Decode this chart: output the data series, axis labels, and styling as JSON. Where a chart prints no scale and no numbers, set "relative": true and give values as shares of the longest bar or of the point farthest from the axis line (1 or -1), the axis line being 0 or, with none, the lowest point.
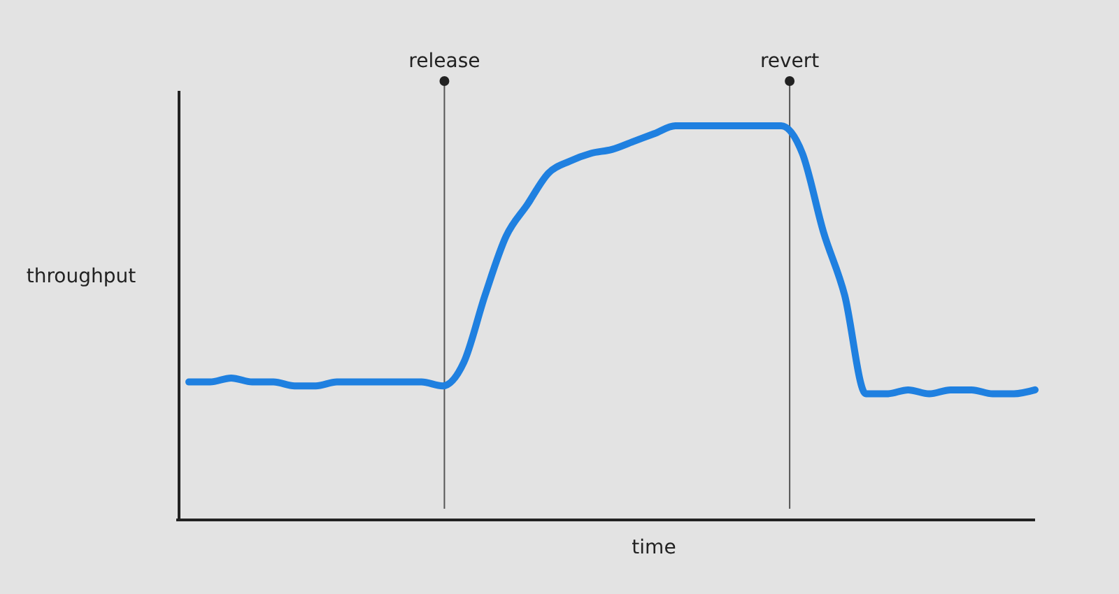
{
  "chart_data": {
    "type": "line",
    "xlabel": "time",
    "ylabel": "throughput",
    "relative": true,
    "categories": [
      null,
      null,
      null,
      null,
      null,
      null,
      null,
      null,
      null,
      null,
      null,
      null,
      null,
      null,
      null,
      null,
      null,
      null,
      null,
      null,
      null,
      null,
      null,
      null,
      null,
      null,
      null,
      null,
      null,
      null,
      null,
      null,
      null,
      null,
      null,
      null,
      null,
      null,
      null,
      null,
      null
    ],
    "series": [
      {
        "color": "#1f80e0",
        "values": [
          0.35,
          0.35,
          0.36,
          0.35,
          0.35,
          0.34,
          0.34,
          0.35,
          0.35,
          0.35,
          0.35,
          0.35,
          0.34,
          0.4,
          0.57,
          0.72,
          0.8,
          0.88,
          0.91,
          0.93,
          0.94,
          0.96,
          0.98,
          1.0,
          1.0,
          1.0,
          1.0,
          1.0,
          1.0,
          0.93,
          0.73,
          0.57,
          0.32,
          0.32,
          0.33,
          0.32,
          0.33,
          0.33,
          0.32,
          0.32,
          0.33
        ]
      }
    ],
    "annotations": [
      "release",
      "revert"
    ]
  }
}
